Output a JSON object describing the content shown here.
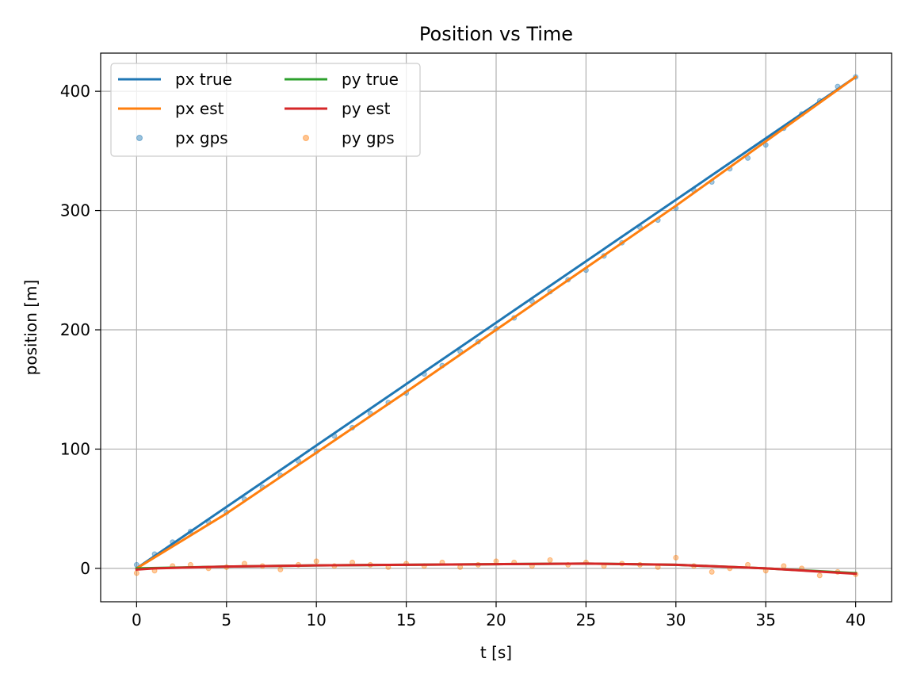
{
  "chart_data": {
    "type": "line",
    "title": "Position vs Time",
    "xlabel": "t [s]",
    "ylabel": "position [m]",
    "xlim": [
      -2,
      42
    ],
    "ylim": [
      -28,
      432
    ],
    "xticks": [
      0,
      5,
      10,
      15,
      20,
      25,
      30,
      35,
      40
    ],
    "yticks": [
      0,
      100,
      200,
      300,
      400
    ],
    "grid": true,
    "legend": {
      "placement": "top-left",
      "columns": 2
    },
    "series": [
      {
        "name": "px true",
        "kind": "line",
        "color": "#1f77b4",
        "x": [
          0,
          40
        ],
        "y": [
          0,
          412
        ]
      },
      {
        "name": "px est",
        "kind": "line",
        "color": "#ff7f0e",
        "x": [
          0,
          5,
          10,
          15,
          20,
          25,
          30,
          35,
          40
        ],
        "y": [
          0,
          46,
          97,
          148,
          200,
          252,
          304,
          358,
          412
        ]
      },
      {
        "name": "px gps",
        "kind": "scatter",
        "color": "#1f77b4",
        "x": [
          0,
          1,
          2,
          3,
          4,
          5,
          6,
          7,
          8,
          9,
          10,
          11,
          12,
          13,
          14,
          15,
          16,
          17,
          18,
          19,
          20,
          21,
          22,
          23,
          24,
          25,
          26,
          27,
          28,
          29,
          30,
          31,
          32,
          33,
          34,
          35,
          36,
          37,
          38,
          39,
          40
        ],
        "y": [
          3,
          12,
          22,
          31,
          39,
          47,
          58,
          68,
          78,
          90,
          98,
          111,
          118,
          130,
          139,
          147,
          163,
          170,
          182,
          190,
          201,
          210,
          224,
          232,
          242,
          250,
          262,
          273,
          286,
          292,
          302,
          317,
          324,
          335,
          344,
          355,
          369,
          381,
          392,
          404,
          412
        ]
      },
      {
        "name": "py true",
        "kind": "line",
        "color": "#2ca02c",
        "x": [
          0,
          5,
          10,
          15,
          20,
          25,
          30,
          35,
          40
        ],
        "y": [
          0,
          1.5,
          2.5,
          3,
          3.5,
          4,
          3,
          0,
          -4
        ]
      },
      {
        "name": "py est",
        "kind": "line",
        "color": "#d62728",
        "x": [
          0,
          1,
          5,
          10,
          15,
          20,
          25,
          30,
          35,
          40
        ],
        "y": [
          -1,
          0,
          1.5,
          2.5,
          3,
          3.5,
          4,
          3,
          0,
          -4.5
        ]
      },
      {
        "name": "py gps",
        "kind": "scatter",
        "color": "#ff7f0e",
        "x": [
          0,
          1,
          2,
          3,
          4,
          5,
          6,
          7,
          8,
          9,
          10,
          11,
          12,
          13,
          14,
          15,
          16,
          17,
          18,
          19,
          20,
          21,
          22,
          23,
          24,
          25,
          26,
          27,
          28,
          29,
          30,
          31,
          32,
          33,
          34,
          35,
          36,
          37,
          38,
          39,
          40
        ],
        "y": [
          -4,
          -2,
          2,
          3,
          0,
          1,
          4,
          2,
          -1,
          3,
          6,
          2,
          5,
          3,
          1,
          4,
          2,
          5,
          1,
          3,
          6,
          5,
          2,
          7,
          3,
          5,
          2,
          4,
          3,
          1,
          9,
          2,
          -3,
          0,
          3,
          -2,
          2,
          0,
          -6,
          -3,
          -5
        ]
      }
    ]
  }
}
